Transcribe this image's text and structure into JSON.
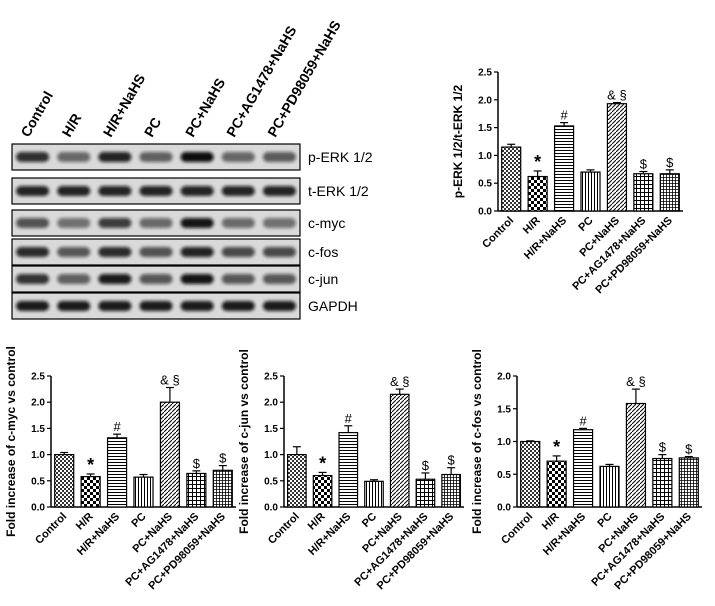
{
  "blot": {
    "lanes": [
      "Control",
      "H/R",
      "H/R+NaHS",
      "PC",
      "PC+NaHS",
      "PC+AG1478+NaHS",
      "PC+PD98059+NaHS"
    ],
    "rows": [
      {
        "label": "p-ERK 1/2",
        "intensity": [
          0.78,
          0.4,
          0.85,
          0.45,
          1.0,
          0.42,
          0.48
        ]
      },
      {
        "label": "t-ERK 1/2",
        "intensity": [
          0.85,
          0.85,
          0.85,
          0.85,
          0.85,
          0.85,
          0.85
        ]
      },
      {
        "label": "c-myc",
        "intensity": [
          0.55,
          0.35,
          0.7,
          0.4,
          0.95,
          0.38,
          0.35
        ]
      },
      {
        "label": "c-fos",
        "intensity": [
          0.8,
          0.5,
          0.8,
          0.55,
          0.85,
          0.6,
          0.6
        ]
      },
      {
        "label": "c-jun",
        "intensity": [
          0.75,
          0.45,
          0.9,
          0.5,
          0.95,
          0.5,
          0.5
        ]
      },
      {
        "label": "GAPDH",
        "intensity": [
          0.9,
          0.9,
          0.9,
          0.9,
          0.9,
          0.9,
          0.9
        ]
      }
    ]
  },
  "chart_data": [
    {
      "type": "bar",
      "ylabel": "p-ERK 1/2/t-ERK 1/2",
      "ylim": [
        0,
        2.5
      ],
      "yticks": [
        "0.0",
        "0.5",
        "1.0",
        "1.5",
        "2.0",
        "2.5"
      ],
      "categories": [
        "Control",
        "H/R",
        "H/R+NaHS",
        "PC",
        "PC+NaHS",
        "PC+AG1478+NaHS",
        "PC+PD98059+NaHS"
      ],
      "values": [
        1.15,
        0.62,
        1.53,
        0.7,
        1.93,
        0.67,
        0.67
      ],
      "errors": [
        0.05,
        0.1,
        0.06,
        0.04,
        0.02,
        0.04,
        0.07
      ],
      "marks": [
        "",
        "*",
        "#",
        "",
        "& §",
        "$",
        "$"
      ]
    },
    {
      "type": "bar",
      "ylabel": "Fold increase of c-myc vs control",
      "ylim": [
        0,
        2.5
      ],
      "yticks": [
        "0.0",
        "0.5",
        "1.0",
        "1.5",
        "2.0",
        "2.5"
      ],
      "categories": [
        "Control",
        "H/R",
        "H/R+NaHS",
        "PC",
        "PC+NaHS",
        "PC+AG1478+NaHS",
        "PC+PD98059+NaHS"
      ],
      "values": [
        1.0,
        0.58,
        1.32,
        0.57,
        2.0,
        0.64,
        0.7
      ],
      "errors": [
        0.04,
        0.05,
        0.07,
        0.05,
        0.28,
        0.05,
        0.09
      ],
      "marks": [
        "",
        "*",
        "#",
        "",
        "& §",
        "$",
        "$"
      ]
    },
    {
      "type": "bar",
      "ylabel": "Fold increase of c-jun vs control",
      "ylim": [
        0,
        2.5
      ],
      "yticks": [
        "0.0",
        "0.5",
        "1.0",
        "1.5",
        "2.0",
        "2.5"
      ],
      "categories": [
        "Control",
        "H/R",
        "H/R+NaHS",
        "PC",
        "PC+NaHS",
        "PC+AG1478+NaHS",
        "PC+PD98059+NaHS"
      ],
      "values": [
        1.0,
        0.6,
        1.42,
        0.49,
        2.15,
        0.53,
        0.62
      ],
      "errors": [
        0.15,
        0.06,
        0.13,
        0.03,
        0.1,
        0.12,
        0.13
      ],
      "marks": [
        "",
        "*",
        "#",
        "",
        "& §",
        "$",
        "$"
      ]
    },
    {
      "type": "bar",
      "ylabel": "Fold increase of c-fos vs control",
      "ylim": [
        0,
        2.0
      ],
      "yticks": [
        "0.0",
        "0.5",
        "1.0",
        "1.5",
        "2.0"
      ],
      "categories": [
        "Control",
        "H/R",
        "H/R+NaHS",
        "PC",
        "PC+NaHS",
        "PC+AG1478+NaHS",
        "PC+PD98059+NaHS"
      ],
      "values": [
        1.0,
        0.7,
        1.18,
        0.62,
        1.58,
        0.74,
        0.75
      ],
      "errors": [
        0.01,
        0.08,
        0.02,
        0.03,
        0.22,
        0.06,
        0.02
      ],
      "marks": [
        "",
        "*",
        "#",
        "",
        "& §",
        "$",
        "$"
      ]
    }
  ]
}
